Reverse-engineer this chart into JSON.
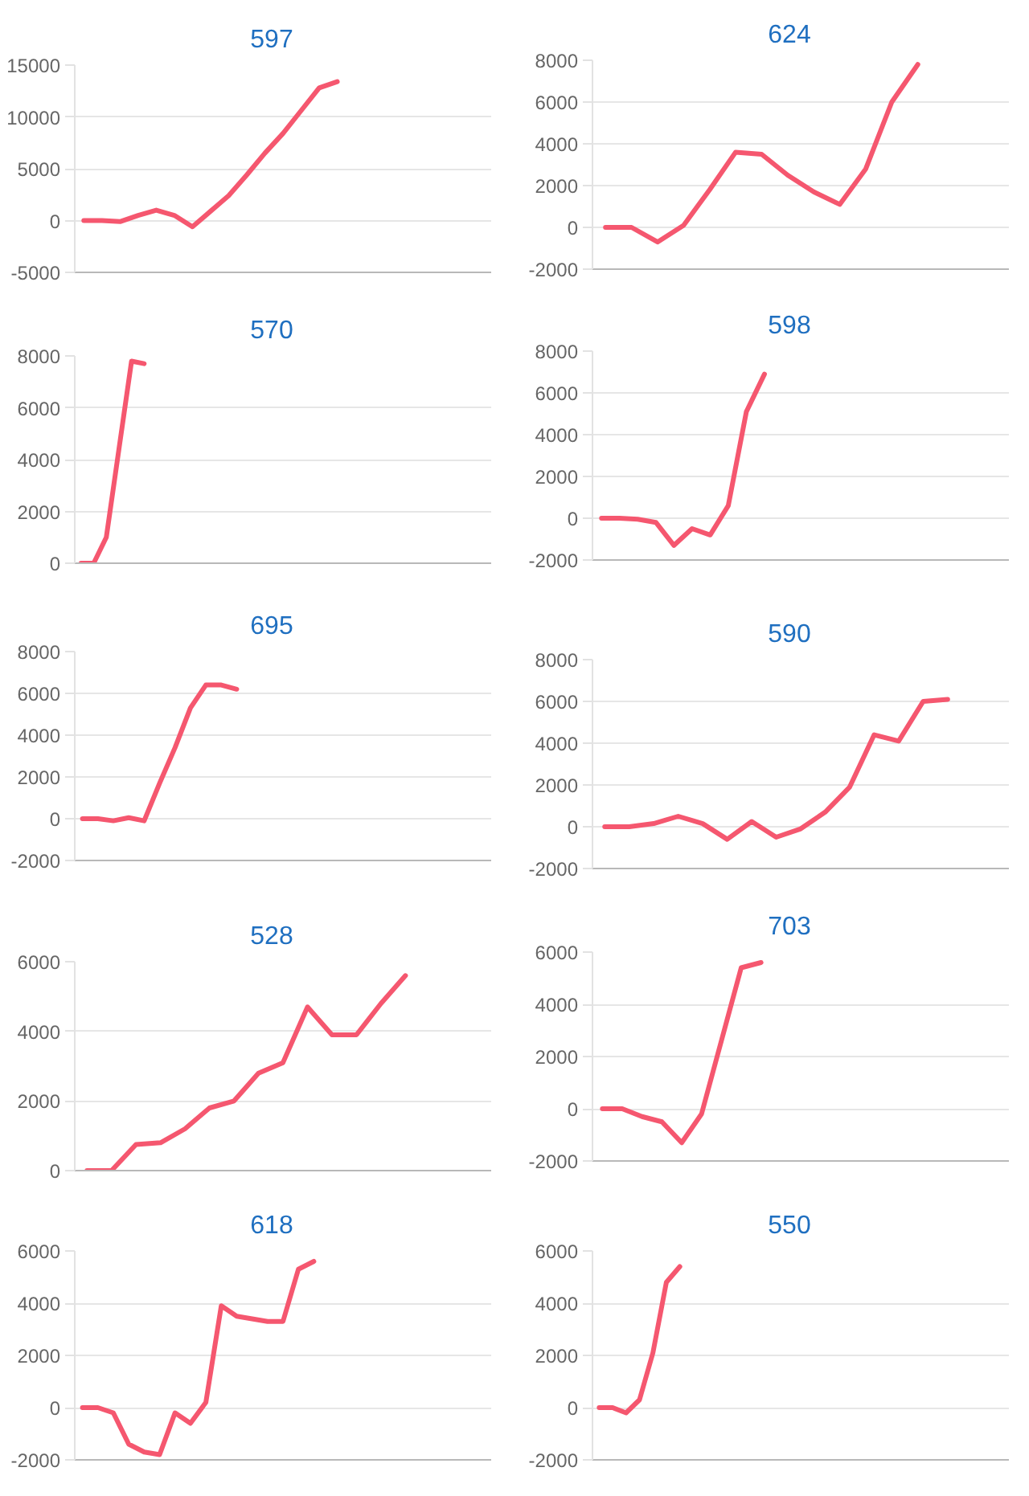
{
  "chart_data": [
    {
      "type": "line",
      "title": "597",
      "categories": [
        null,
        null,
        null,
        null,
        null,
        null,
        null,
        null,
        null,
        null,
        null,
        null,
        null,
        null,
        null,
        null,
        null,
        null,
        null,
        null,
        null,
        null,
        null
      ],
      "series": [
        {
          "color": "#f5576f",
          "values": [
            0,
            0,
            -100,
            500,
            1000,
            500,
            -600,
            900,
            2400,
            4400,
            6500,
            8400,
            10600,
            12800,
            13400,
            null,
            null,
            null,
            null,
            null,
            null,
            null,
            null
          ]
        }
      ],
      "ylim": [
        -5000,
        15000
      ],
      "yticks": [
        -5000,
        0,
        5000,
        10000,
        15000
      ],
      "grid": "y",
      "tick_labels": "y"
    },
    {
      "type": "line",
      "title": "624",
      "categories": [
        null,
        null,
        null,
        null,
        null,
        null,
        null,
        null,
        null,
        null,
        null,
        null,
        null,
        null,
        null,
        null
      ],
      "series": [
        {
          "color": "#f5576f",
          "values": [
            0,
            0,
            -700,
            100,
            1800,
            3600,
            3500,
            2500,
            1700,
            1100,
            2800,
            6000,
            7800,
            null,
            null,
            null
          ]
        }
      ],
      "ylim": [
        -2000,
        8000
      ],
      "yticks": [
        -2000,
        0,
        2000,
        4000,
        6000,
        8000
      ],
      "grid": "y",
      "tick_labels": "y"
    },
    {
      "type": "line",
      "title": "570",
      "categories": [
        null,
        null,
        null,
        null,
        null,
        null,
        null,
        null,
        null,
        null,
        null,
        null,
        null,
        null,
        null,
        null,
        null,
        null,
        null,
        null,
        null,
        null,
        null,
        null,
        null,
        null,
        null,
        null,
        null,
        null,
        null,
        null,
        null
      ],
      "series": [
        {
          "color": "#f5576f",
          "values": [
            0,
            0,
            1000,
            4400,
            7800,
            7700,
            null,
            null,
            null,
            null,
            null,
            null,
            null,
            null,
            null,
            null,
            null,
            null,
            null,
            null,
            null,
            null,
            null,
            null,
            null,
            null,
            null,
            null,
            null,
            null,
            null,
            null,
            null
          ]
        }
      ],
      "ylim": [
        0,
        8000
      ],
      "yticks": [
        0,
        2000,
        4000,
        6000,
        8000
      ],
      "grid": "y",
      "tick_labels": "y"
    },
    {
      "type": "line",
      "title": "598",
      "categories": [
        null,
        null,
        null,
        null,
        null,
        null,
        null,
        null,
        null,
        null,
        null,
        null,
        null,
        null,
        null,
        null,
        null,
        null,
        null,
        null,
        null,
        null,
        null
      ],
      "series": [
        {
          "color": "#f5576f",
          "values": [
            0,
            0,
            -50,
            -200,
            -1300,
            -500,
            -800,
            600,
            5100,
            6900,
            null,
            null,
            null,
            null,
            null,
            null,
            null,
            null,
            null,
            null,
            null,
            null,
            null
          ]
        }
      ],
      "ylim": [
        -2000,
        8000
      ],
      "yticks": [
        -2000,
        0,
        2000,
        4000,
        6000,
        8000
      ],
      "grid": "y",
      "tick_labels": "y"
    },
    {
      "type": "line",
      "title": "695",
      "categories": [
        null,
        null,
        null,
        null,
        null,
        null,
        null,
        null,
        null,
        null,
        null,
        null,
        null,
        null,
        null,
        null,
        null,
        null,
        null,
        null,
        null,
        null,
        null,
        null,
        null,
        null,
        null
      ],
      "series": [
        {
          "color": "#f5576f",
          "values": [
            0,
            0,
            -100,
            50,
            -100,
            1700,
            3400,
            5300,
            6400,
            6400,
            6200,
            null,
            null,
            null,
            null,
            null,
            null,
            null,
            null,
            null,
            null,
            null,
            null,
            null,
            null,
            null,
            null
          ]
        }
      ],
      "ylim": [
        -2000,
        8000
      ],
      "yticks": [
        -2000,
        0,
        2000,
        4000,
        6000,
        8000
      ],
      "grid": "y",
      "tick_labels": "y"
    },
    {
      "type": "line",
      "title": "590",
      "categories": [
        null,
        null,
        null,
        null,
        null,
        null,
        null,
        null,
        null,
        null,
        null,
        null,
        null,
        null,
        null,
        null,
        null
      ],
      "series": [
        {
          "color": "#f5576f",
          "values": [
            0,
            0,
            150,
            500,
            150,
            -600,
            250,
            -500,
            -100,
            700,
            1900,
            4400,
            4100,
            6000,
            6100,
            null,
            null
          ]
        }
      ],
      "ylim": [
        -2000,
        8000
      ],
      "yticks": [
        -2000,
        0,
        2000,
        4000,
        6000,
        8000
      ],
      "grid": "y",
      "tick_labels": "y"
    },
    {
      "type": "line",
      "title": "528",
      "categories": [
        null,
        null,
        null,
        null,
        null,
        null,
        null,
        null,
        null,
        null,
        null,
        null,
        null,
        null,
        null,
        null,
        null
      ],
      "series": [
        {
          "color": "#f5576f",
          "values": [
            0,
            0,
            750,
            800,
            1200,
            1800,
            2000,
            2800,
            3100,
            4700,
            3900,
            3900,
            4800,
            5600,
            null,
            null,
            null
          ]
        }
      ],
      "ylim": [
        0,
        6000
      ],
      "yticks": [
        0,
        2000,
        4000,
        6000
      ],
      "grid": "y",
      "tick_labels": "y"
    },
    {
      "type": "line",
      "title": "703",
      "categories": [
        null,
        null,
        null,
        null,
        null,
        null,
        null,
        null,
        null,
        null,
        null,
        null,
        null,
        null,
        null,
        null,
        null,
        null,
        null,
        null,
        null
      ],
      "series": [
        {
          "color": "#f5576f",
          "values": [
            0,
            0,
            -300,
            -500,
            -1300,
            -200,
            2600,
            5400,
            5600,
            null,
            null,
            null,
            null,
            null,
            null,
            null,
            null,
            null,
            null,
            null,
            null
          ]
        }
      ],
      "ylim": [
        -2000,
        6000
      ],
      "yticks": [
        -2000,
        0,
        2000,
        4000,
        6000
      ],
      "grid": "y",
      "tick_labels": "y"
    },
    {
      "type": "line",
      "title": "618",
      "categories": [
        null,
        null,
        null,
        null,
        null,
        null,
        null,
        null,
        null,
        null,
        null,
        null,
        null,
        null,
        null,
        null,
        null,
        null,
        null,
        null,
        null,
        null,
        null,
        null,
        null,
        null,
        null
      ],
      "series": [
        {
          "color": "#f5576f",
          "values": [
            0,
            0,
            -200,
            -1400,
            -1700,
            -1800,
            -200,
            -600,
            200,
            3900,
            3500,
            3400,
            3300,
            3300,
            5300,
            5600,
            null,
            null,
            null,
            null,
            null,
            null,
            null,
            null,
            null,
            null,
            null
          ]
        }
      ],
      "ylim": [
        -2000,
        6000
      ],
      "yticks": [
        -2000,
        0,
        2000,
        4000,
        6000
      ],
      "grid": "y",
      "tick_labels": "y"
    },
    {
      "type": "line",
      "title": "550",
      "categories": [
        null,
        null,
        null,
        null,
        null,
        null,
        null,
        null,
        null,
        null,
        null,
        null,
        null,
        null,
        null,
        null,
        null,
        null,
        null,
        null,
        null,
        null,
        null,
        null,
        null,
        null,
        null,
        null,
        null,
        null,
        null
      ],
      "series": [
        {
          "color": "#f5576f",
          "values": [
            0,
            0,
            -200,
            300,
            2100,
            4800,
            5400,
            null,
            null,
            null,
            null,
            null,
            null,
            null,
            null,
            null,
            null,
            null,
            null,
            null,
            null,
            null,
            null,
            null,
            null,
            null,
            null,
            null,
            null,
            null,
            null
          ]
        }
      ],
      "ylim": [
        -2000,
        6000
      ],
      "yticks": [
        -2000,
        0,
        2000,
        4000,
        6000
      ],
      "grid": "y",
      "tick_labels": "y"
    }
  ]
}
